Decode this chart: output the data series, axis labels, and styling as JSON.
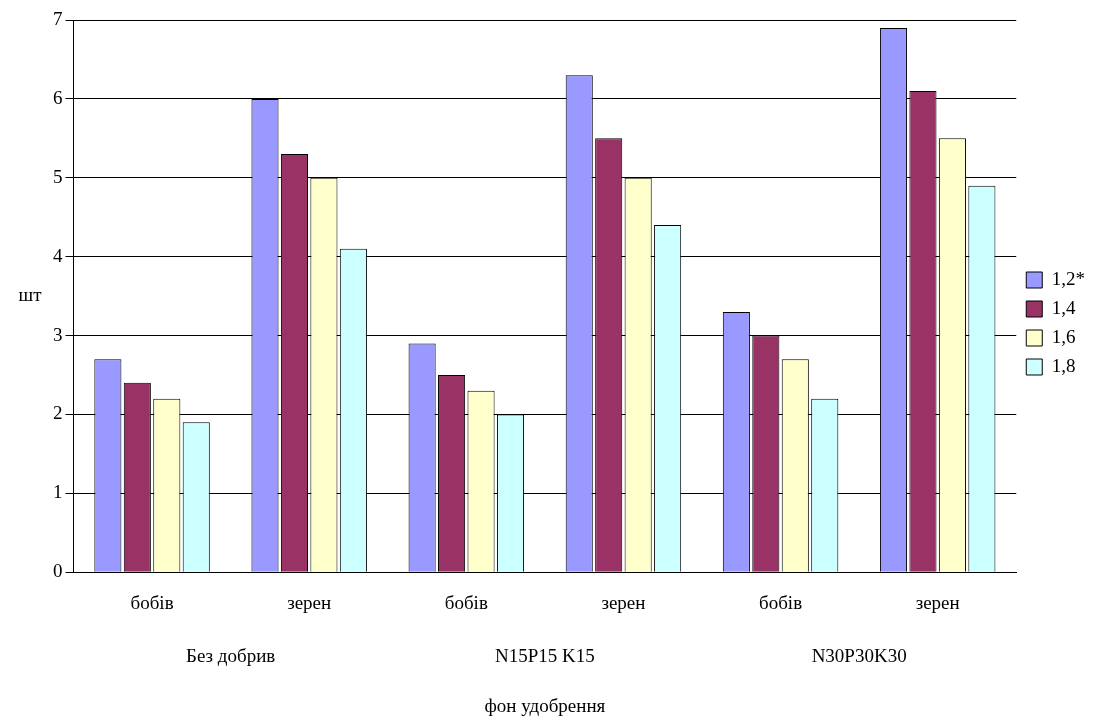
{
  "chart_data": {
    "type": "bar",
    "xlabel": "фон удобрення",
    "ylabel": "шт",
    "categories": [
      "бобів",
      "зерен",
      "бобів",
      "зерен",
      "бобів",
      "зерен"
    ],
    "series": [
      {
        "name": "1,2*",
        "color": "#9999ff",
        "values": [
          2.7,
          6.0,
          2.9,
          6.3,
          3.3,
          6.9
        ]
      },
      {
        "name": "1,4",
        "color": "#993366",
        "values": [
          2.4,
          5.3,
          2.5,
          5.5,
          3.0,
          6.1
        ]
      },
      {
        "name": "1,6",
        "color": "#ffffcc",
        "values": [
          2.2,
          5.0,
          2.3,
          5.0,
          2.7,
          5.5
        ]
      },
      {
        "name": "1,8",
        "color": "#ccffff",
        "values": [
          1.9,
          4.1,
          2.0,
          4.4,
          2.2,
          4.9
        ]
      }
    ],
    "annotations": [
      "Без добрив",
      "N15P15 K15",
      "N30P30K30"
    ],
    "ylim": [
      0,
      7
    ],
    "yticks": [
      0,
      1,
      2,
      3,
      4,
      5,
      6,
      7
    ],
    "grid": "y",
    "legend": "right"
  }
}
